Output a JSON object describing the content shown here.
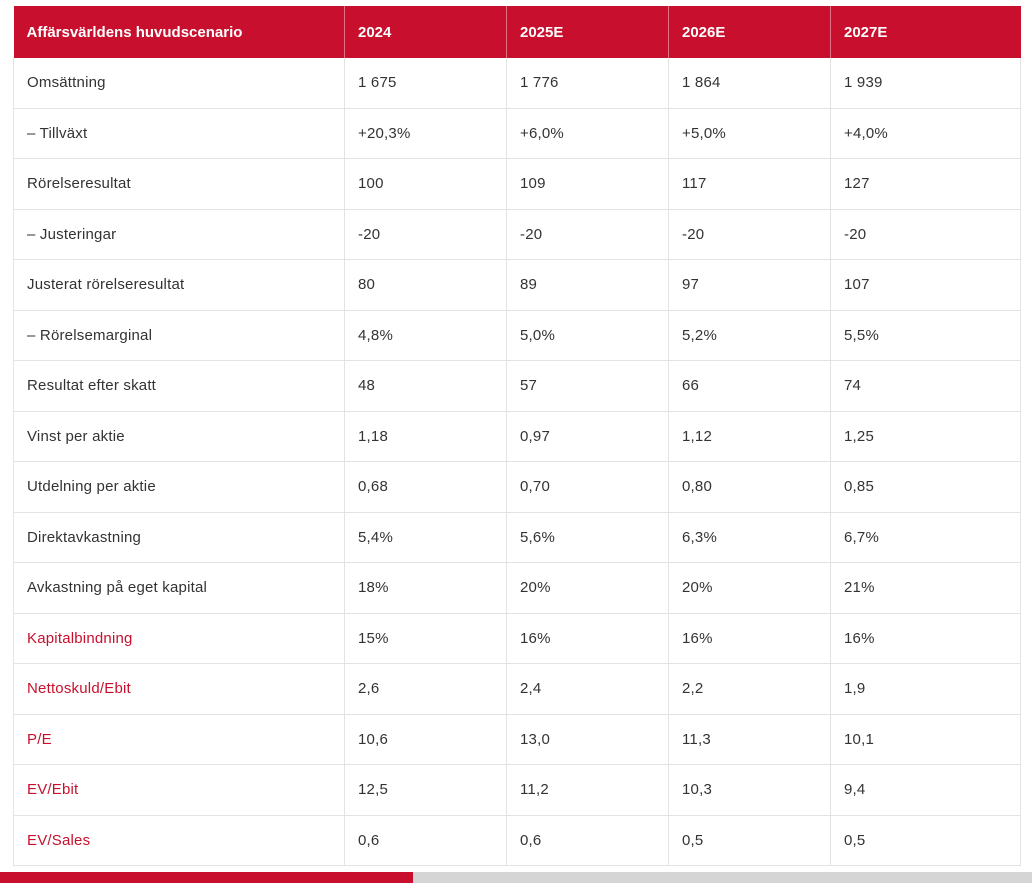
{
  "table": {
    "headers": [
      "Affärsvärldens huvudscenario",
      "2024",
      "2025E",
      "2026E",
      "2027E"
    ],
    "rows": [
      {
        "label": "Omsättning",
        "values": [
          "1 675",
          "1 776",
          "1 864",
          "1 939"
        ],
        "highlight": false
      },
      {
        "label": " – Tillväxt",
        "values": [
          "+20,3%",
          "+6,0%",
          "+5,0%",
          "+4,0%"
        ],
        "highlight": false
      },
      {
        "label": "Rörelseresultat",
        "values": [
          "100",
          "109",
          "117",
          "127"
        ],
        "highlight": false
      },
      {
        "label": " – Justeringar",
        "values": [
          "-20",
          "-20",
          "-20",
          "-20"
        ],
        "highlight": false
      },
      {
        "label": "Justerat rörelseresultat",
        "values": [
          "80",
          "89",
          "97",
          "107"
        ],
        "highlight": false
      },
      {
        "label": " – Rörelsemarginal",
        "values": [
          "4,8%",
          "5,0%",
          "5,2%",
          "5,5%"
        ],
        "highlight": false
      },
      {
        "label": "Resultat efter skatt",
        "values": [
          "48",
          "57",
          "66",
          "74"
        ],
        "highlight": false
      },
      {
        "label": "Vinst per aktie",
        "values": [
          "1,18",
          "0,97",
          "1,12",
          "1,25"
        ],
        "highlight": false
      },
      {
        "label": "Utdelning per aktie",
        "values": [
          "0,68",
          "0,70",
          "0,80",
          "0,85"
        ],
        "highlight": false
      },
      {
        "label": "Direktavkastning",
        "values": [
          "5,4%",
          "5,6%",
          "6,3%",
          "6,7%"
        ],
        "highlight": false
      },
      {
        "label": "Avkastning på eget kapital",
        "values": [
          "18%",
          "20%",
          "20%",
          "21%"
        ],
        "highlight": false
      },
      {
        "label": "Kapitalbindning",
        "values": [
          "15%",
          "16%",
          "16%",
          "16%"
        ],
        "highlight": true
      },
      {
        "label": "Nettoskuld/Ebit",
        "values": [
          "2,6",
          "2,4",
          "2,2",
          "1,9"
        ],
        "highlight": true
      },
      {
        "label": "P/E",
        "values": [
          "10,6",
          "13,0",
          "11,3",
          "10,1"
        ],
        "highlight": true
      },
      {
        "label": "EV/Ebit",
        "values": [
          "12,5",
          "11,2",
          "10,3",
          "9,4"
        ],
        "highlight": true
      },
      {
        "label": "EV/Sales",
        "values": [
          "0,6",
          "0,6",
          "0,5",
          "0,5"
        ],
        "highlight": true
      }
    ]
  },
  "colors": {
    "accent": "#c8102e",
    "text": "#333333",
    "grid": "#e3e3e3",
    "scroll_track": "#d5d5d5"
  },
  "scrollbar": {
    "position_fraction": 0.0,
    "visible_fraction": 0.4
  }
}
